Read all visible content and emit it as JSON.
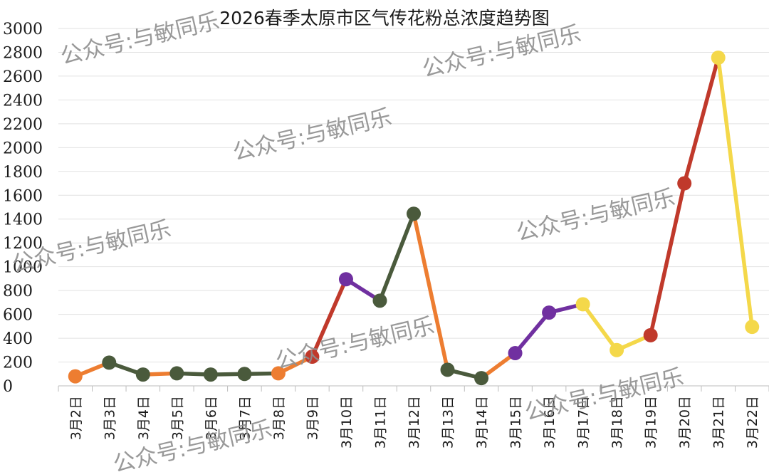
{
  "chart_data": {
    "type": "line",
    "title": "2026春季太原市区气传花粉总浓度趋势图",
    "xlabel": "",
    "ylabel": "",
    "ylim": [
      0,
      3000
    ],
    "yticks": [
      0,
      200,
      400,
      600,
      800,
      1000,
      1200,
      1400,
      1600,
      1800,
      2000,
      2200,
      2400,
      2600,
      2800,
      3000
    ],
    "grid": true,
    "legend": "none",
    "categories": [
      "3月2日",
      "3月3日",
      "3月4日",
      "3月5日",
      "3月6日",
      "3月7日",
      "3月8日",
      "3月9日",
      "3月10日",
      "3月11日",
      "3月12日",
      "3月13日",
      "3月14日",
      "3月15日",
      "3月16日",
      "3月17日",
      "3月18日",
      "3月19日",
      "3月20日",
      "3月21日",
      "3月22日"
    ],
    "values": [
      80,
      195,
      95,
      105,
      95,
      100,
      105,
      245,
      895,
      715,
      1445,
      135,
      65,
      275,
      615,
      685,
      300,
      425,
      1700,
      2755,
      495
    ],
    "point_colors": [
      "#ED7D31",
      "#4A5A3C",
      "#4A5A3C",
      "#4A5A3C",
      "#4A5A3C",
      "#4A5A3C",
      "#ED7D31",
      "#C0392B",
      "#7030A0",
      "#4A5A3C",
      "#4A5A3C",
      "#4A5A3C",
      "#4A5A3C",
      "#7030A0",
      "#7030A0",
      "#F4D84A",
      "#F4D84A",
      "#C0392B",
      "#C0392B",
      "#F4D84A",
      "#F4D84A"
    ],
    "segment_colors": [
      "#ED7D31",
      "#4A5A3C",
      "#ED7D31",
      "#4A5A3C",
      "#4A5A3C",
      "#4A5A3C",
      "#ED7D31",
      "#C0392B",
      "#7030A0",
      "#4A5A3C",
      "#ED7D31",
      "#4A5A3C",
      "#ED7D31",
      "#7030A0",
      "#7030A0",
      "#F4D84A",
      "#F4D84A",
      "#C0392B",
      "#C0392B",
      "#F4D84A"
    ]
  },
  "watermark": "公众号:与敏同乐"
}
